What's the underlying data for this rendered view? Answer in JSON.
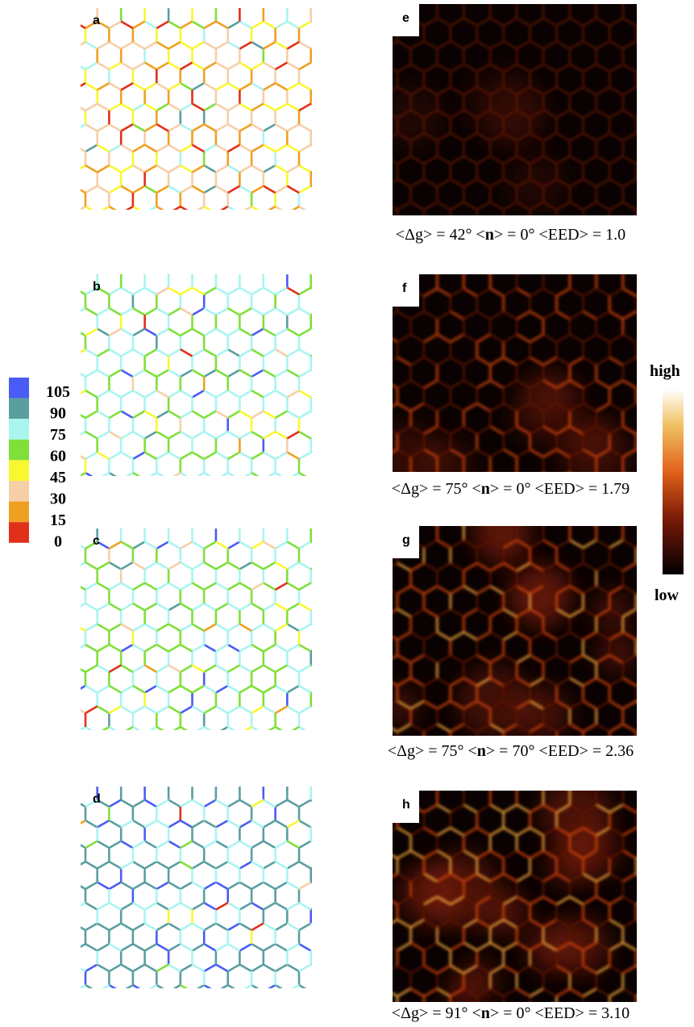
{
  "panels_left": [
    {
      "label": "a"
    },
    {
      "label": "b"
    },
    {
      "label": "c"
    },
    {
      "label": "d"
    }
  ],
  "panels_right": [
    {
      "label": "e",
      "caption": {
        "before": "<Δg> = 42° <",
        "bold": "n",
        "after": "> = 0° <EED> = 1.0"
      }
    },
    {
      "label": "f",
      "caption": {
        "before": "<Δg> = 75° <",
        "bold": "n",
        "after": "> = 0° <EED> = 1.79"
      }
    },
    {
      "label": "g",
      "caption": {
        "before": "<Δg> = 75° <",
        "bold": "n",
        "after": "> = 70° <EED> = 2.36"
      }
    },
    {
      "label": "h",
      "caption": {
        "before": "<Δg> = 91° <",
        "bold": "n",
        "after": "> = 0° <EED> = 3.10"
      }
    }
  ],
  "legend": {
    "items": [
      {
        "label": "105",
        "color": "#4a5cf5"
      },
      {
        "label": "90",
        "color": "#5a9ea0"
      },
      {
        "label": "75",
        "color": "#a8f5f0"
      },
      {
        "label": "60",
        "color": "#7fe03a"
      },
      {
        "label": "45",
        "color": "#f8f830"
      },
      {
        "label": "30",
        "color": "#f5cfa8"
      },
      {
        "label": "15",
        "color": "#f0a020"
      },
      {
        "label": "0",
        "color": "#e0301a"
      }
    ]
  },
  "colorbar": {
    "high": "high",
    "low": "low"
  }
}
